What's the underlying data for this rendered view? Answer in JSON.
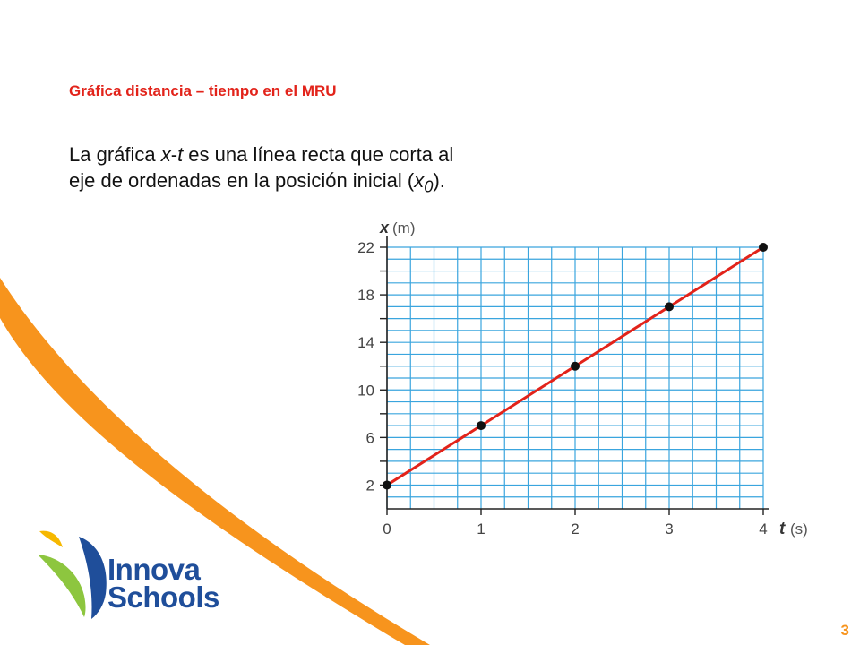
{
  "slide": {
    "title": "Gráfica distancia – tiempo en el MRU",
    "body_part1": "La gráfica ",
    "body_x": "x",
    "body_dash": "-",
    "body_t": "t",
    "body_part2": " es una línea recta que corta al eje de ordenadas en la posición inicial (",
    "body_x0": "x",
    "body_sub": "0",
    "body_end": ").",
    "page_number": "3"
  },
  "brand": {
    "line1": "Innova",
    "line2": "Schools"
  },
  "colors": {
    "title": "#e2231a",
    "orange": "#f7941d",
    "grid": "#3aa5de",
    "line": "#e2231a",
    "point": "#111111",
    "brand_blue": "#1f4e9a",
    "brand_green": "#8dc63f",
    "brand_yellow": "#f6b800",
    "page_number": "#f7941d"
  },
  "chart_data": {
    "type": "line",
    "xlabel_var": "t",
    "xlabel_unit": "(s)",
    "ylabel_var": "x",
    "ylabel_unit": "(m)",
    "xlim": [
      0,
      4
    ],
    "ylim": [
      0,
      22
    ],
    "x_ticks": [
      0,
      1,
      2,
      3,
      4
    ],
    "y_ticks": [
      2,
      6,
      10,
      14,
      18,
      22
    ],
    "grid": true,
    "series": [
      {
        "x": [
          0,
          1,
          2,
          3,
          4
        ],
        "y": [
          2,
          7,
          12,
          17,
          22
        ]
      }
    ]
  }
}
